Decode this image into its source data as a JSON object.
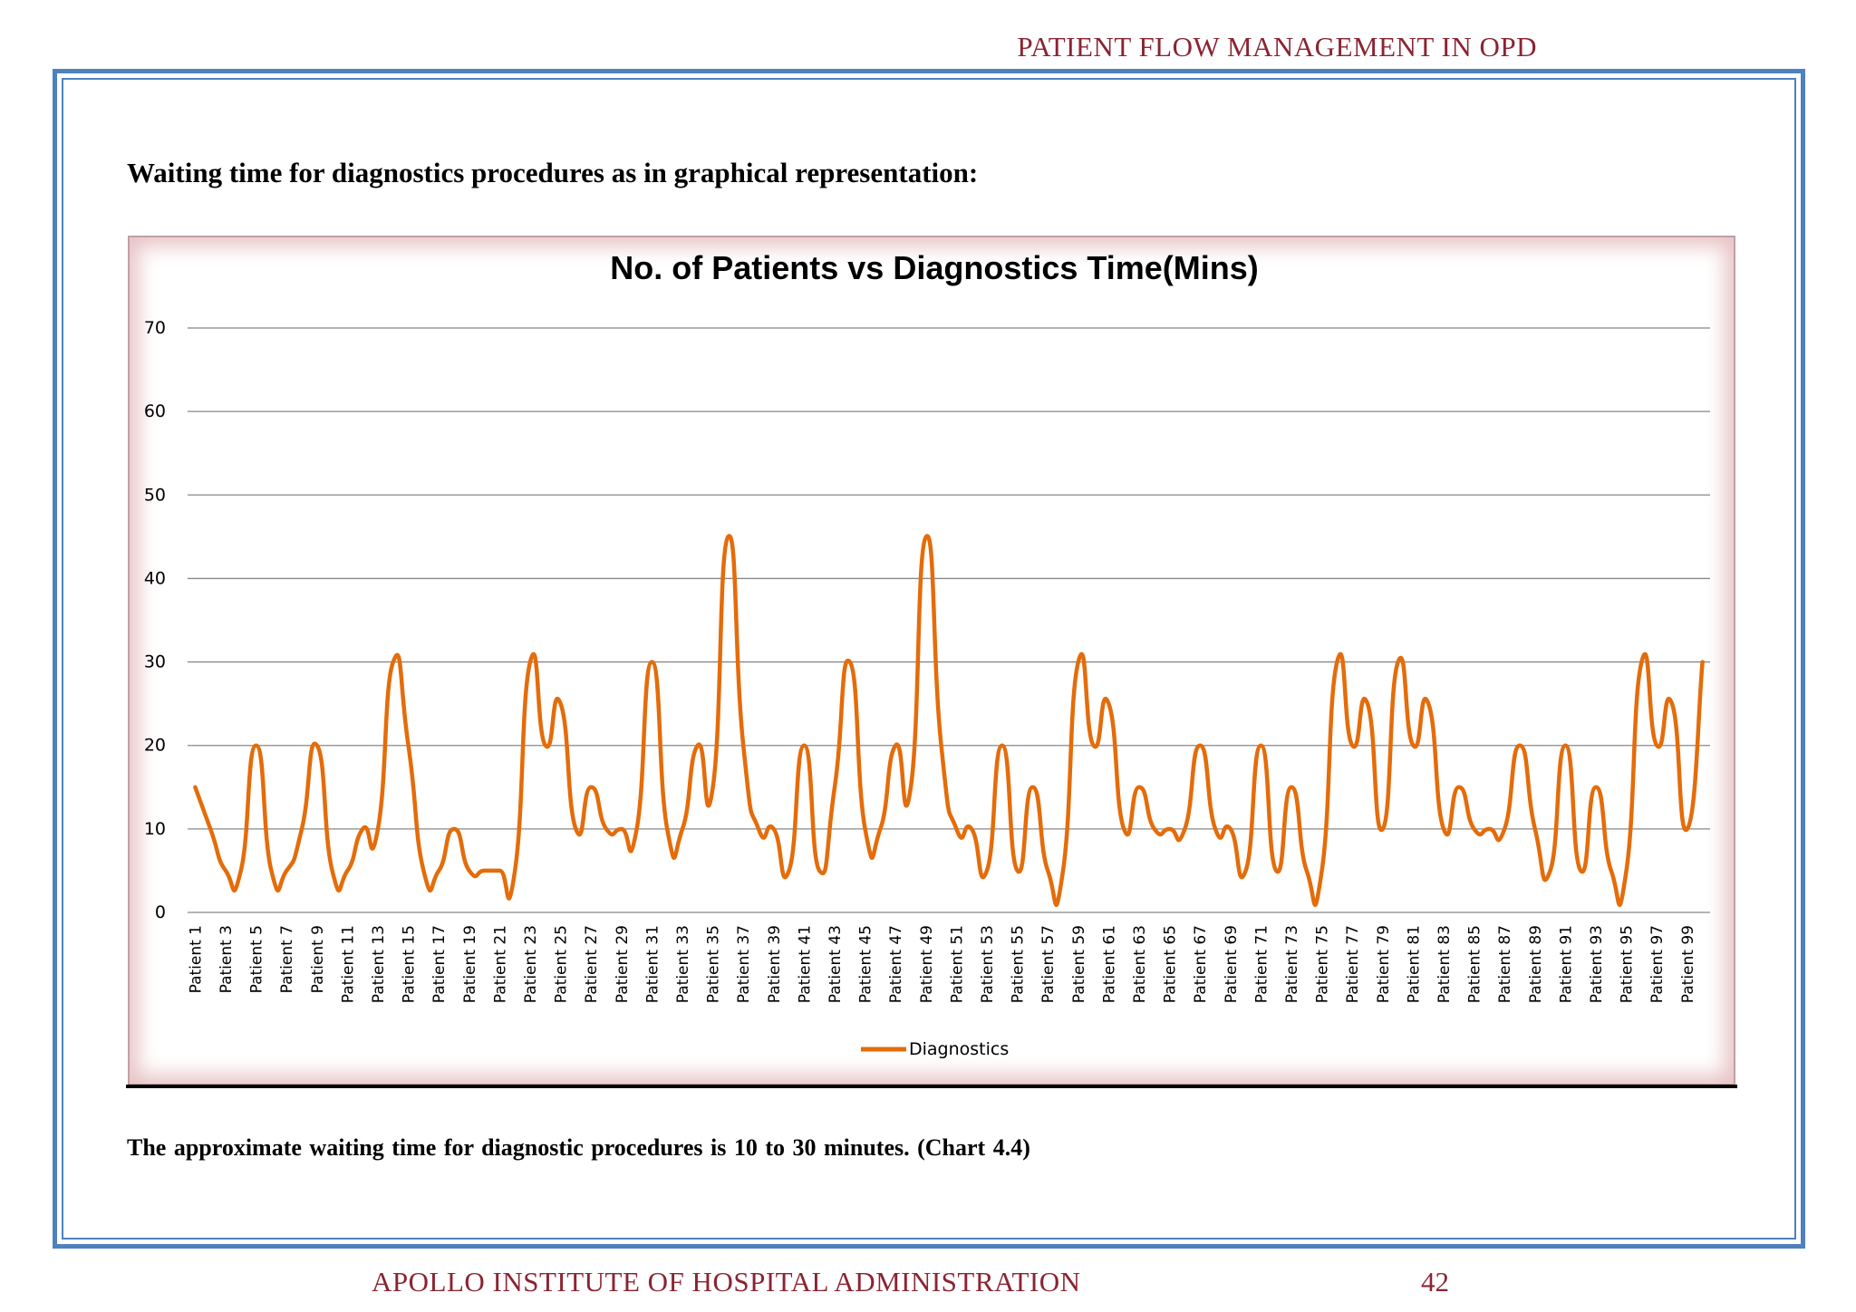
{
  "header": {
    "title": "PATIENT FLOW MANAGEMENT IN OPD"
  },
  "section_heading": "Waiting time for diagnostics procedures as in graphical representation:",
  "conclusion": "The approximate  waiting  time  for diagnostic  procedures  is 10 to 30 minutes.  (Chart  4.4)",
  "footer": {
    "institution": "APOLLO INSTITUTE OF HOSPITAL ADMINISTRATION",
    "page_number": "42"
  },
  "colors": {
    "series": "#e46c0a",
    "grid": "#888888",
    "header_text": "#8b2432",
    "frame": "#4f81bd"
  },
  "chart_data": {
    "type": "line",
    "title": "No. of Patients vs Diagnostics Time(Mins)",
    "xlabel": "",
    "ylabel": "",
    "ylim": [
      0,
      70
    ],
    "yticks": [
      0,
      10,
      20,
      30,
      40,
      50,
      60,
      70
    ],
    "grid": true,
    "smooth": true,
    "legend_position": "bottom",
    "x": [
      "Patient 1",
      "Patient 2",
      "Patient 3",
      "Patient 4",
      "Patient 5",
      "Patient 6",
      "Patient 7",
      "Patient 8",
      "Patient 9",
      "Patient 10",
      "Patient 11",
      "Patient 12",
      "Patient 13",
      "Patient 14",
      "Patient 15",
      "Patient 16",
      "Patient 17",
      "Patient 18",
      "Patient 19",
      "Patient 20",
      "Patient 21",
      "Patient 22",
      "Patient 23",
      "Patient 24",
      "Patient 25",
      "Patient 26",
      "Patient 27",
      "Patient 28",
      "Patient 29",
      "Patient 30",
      "Patient 31",
      "Patient 32",
      "Patient 33",
      "Patient 34",
      "Patient 35",
      "Patient 36",
      "Patient 37",
      "Patient 38",
      "Patient 39",
      "Patient 40",
      "Patient 41",
      "Patient 42",
      "Patient 43",
      "Patient 44",
      "Patient 45",
      "Patient 46",
      "Patient 47",
      "Patient 48",
      "Patient 49",
      "Patient 50",
      "Patient 51",
      "Patient 52",
      "Patient 53",
      "Patient 54",
      "Patient 55",
      "Patient 56",
      "Patient 57",
      "Patient 58",
      "Patient 59",
      "Patient 60",
      "Patient 61",
      "Patient 62",
      "Patient 63",
      "Patient 64",
      "Patient 65",
      "Patient 66",
      "Patient 67",
      "Patient 68",
      "Patient 69",
      "Patient 70",
      "Patient 71",
      "Patient 72",
      "Patient 73",
      "Patient 74",
      "Patient 75",
      "Patient 76",
      "Patient 77",
      "Patient 78",
      "Patient 79",
      "Patient 80",
      "Patient 81",
      "Patient 82",
      "Patient 83",
      "Patient 84",
      "Patient 85",
      "Patient 86",
      "Patient 87",
      "Patient 88",
      "Patient 89",
      "Patient 90",
      "Patient 91",
      "Patient 92",
      "Patient 93",
      "Patient 94",
      "Patient 95",
      "Patient 96",
      "Patient 97",
      "Patient 98",
      "Patient 99",
      "Patient 100"
    ],
    "x_tick_labels": [
      "Patient 1",
      "Patient 3",
      "Patient 5",
      "Patient 7",
      "Patient 9",
      "Patient 11",
      "Patient 13",
      "Patient 15",
      "Patient 17",
      "Patient 19",
      "Patient 21",
      "Patient 23",
      "Patient 25",
      "Patient 27",
      "Patient 29",
      "Patient 31",
      "Patient 33",
      "Patient 35",
      "Patient 37",
      "Patient 39",
      "Patient 41",
      "Patient 43",
      "Patient 45",
      "Patient 47",
      "Patient 49",
      "Patient 51",
      "Patient 53",
      "Patient 55",
      "Patient 57",
      "Patient 59",
      "Patient 61",
      "Patient 63",
      "Patient 65",
      "Patient 67",
      "Patient 69",
      "Patient 71",
      "Patient 73",
      "Patient 75",
      "Patient 77",
      "Patient 79",
      "Patient 81",
      "Patient 83",
      "Patient 85",
      "Patient 87",
      "Patient 89",
      "Patient 91",
      "Patient 93",
      "Patient 95",
      "Patient 97",
      "Patient 99"
    ],
    "series": [
      {
        "name": "Diagnostics",
        "values": [
          15,
          10,
          5,
          5,
          20,
          5,
          5,
          10,
          20,
          5,
          5,
          10,
          10,
          30,
          20,
          5,
          5,
          10,
          5,
          5,
          5,
          5,
          30,
          20,
          25,
          10,
          15,
          10,
          10,
          10,
          30,
          10,
          10,
          20,
          15,
          45,
          20,
          10,
          10,
          5,
          20,
          5,
          15,
          30,
          10,
          10,
          20,
          15,
          45,
          20,
          10,
          10,
          5,
          20,
          5,
          15,
          5,
          5,
          30,
          20,
          25,
          10,
          15,
          10,
          10,
          10,
          20,
          10,
          10,
          5,
          20,
          5,
          15,
          5,
          5,
          30,
          20,
          25,
          10,
          30,
          20,
          25,
          10,
          15,
          10,
          10,
          10,
          20,
          10,
          5,
          20,
          5,
          15,
          5,
          5,
          30,
          20,
          25,
          10,
          30
        ]
      }
    ]
  }
}
